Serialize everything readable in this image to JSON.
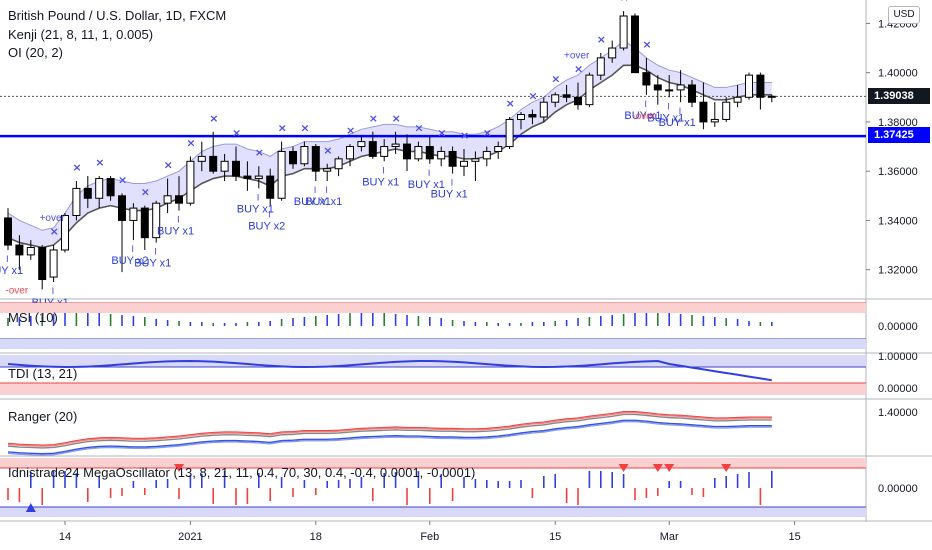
{
  "header": {
    "symbol_line": "British Pound / U.S. Dollar, 1D, FXCM",
    "ind1": "Kenji (21, 8, 11, 1, 0.005)",
    "ind2": "OI (20, 2)"
  },
  "currency": "USD",
  "price_tags": {
    "close": "1.39038",
    "level": "1.37425"
  },
  "colors": {
    "bull_body": "#ffffff",
    "bear_body": "#000000",
    "level_line": "#0000ff",
    "band_fill": "#c9c9ff",
    "marker_blue": "#4b4bf0",
    "marker_red": "#ee4455",
    "ranger_red": "#f04040",
    "ranger_blue": "#3355dd"
  },
  "panels": {
    "msi": "MSI (10)",
    "tdi": "TDI (13, 21)",
    "ranger": "Ranger (20)",
    "osc": "Idnistrade24 MegaOscillator (13, 8, 21, 11, 0.4, 70, 30, 0.4, -0.4, 0.0001, -0.0001)"
  },
  "chart_data": {
    "type": "candlestick",
    "ylim": [
      1.3085,
      1.4295
    ],
    "yticks": [
      "1.42000",
      "1.40000",
      "1.38000",
      "1.36000",
      "1.34000",
      "1.32000"
    ],
    "ytick_values": [
      1.42,
      1.4,
      1.38,
      1.36,
      1.34,
      1.32
    ],
    "xticks": [
      "14",
      "2021",
      "18",
      "Feb",
      "15",
      "Mar",
      "15"
    ],
    "xtick_index": [
      5,
      16,
      27,
      37,
      48,
      58,
      69
    ],
    "sub_ticks": {
      "msi": "0.00000",
      "tdi_top": "1.00000",
      "tdi_bottom": "0.00000",
      "ranger": "1.40000",
      "osc": "0.00000"
    },
    "horizontal_level": 1.37425,
    "last_close": 1.39038,
    "ohlc": [
      [
        1.341,
        1.345,
        1.328,
        1.33
      ],
      [
        1.33,
        1.334,
        1.32,
        1.326
      ],
      [
        1.326,
        1.332,
        1.324,
        1.329
      ],
      [
        1.329,
        1.33,
        1.312,
        1.316
      ],
      [
        1.317,
        1.33,
        1.315,
        1.328
      ],
      [
        1.328,
        1.343,
        1.327,
        1.342
      ],
      [
        1.342,
        1.356,
        1.34,
        1.353
      ],
      [
        1.353,
        1.358,
        1.345,
        1.349
      ],
      [
        1.349,
        1.358,
        1.345,
        1.357
      ],
      [
        1.357,
        1.358,
        1.348,
        1.35
      ],
      [
        1.35,
        1.351,
        1.319,
        1.34
      ],
      [
        1.34,
        1.347,
        1.332,
        1.345
      ],
      [
        1.345,
        1.346,
        1.328,
        1.333
      ],
      [
        1.333,
        1.348,
        1.331,
        1.347
      ],
      [
        1.347,
        1.357,
        1.343,
        1.35
      ],
      [
        1.35,
        1.358,
        1.344,
        1.347
      ],
      [
        1.347,
        1.366,
        1.346,
        1.364
      ],
      [
        1.364,
        1.372,
        1.36,
        1.366
      ],
      [
        1.366,
        1.376,
        1.359,
        1.36
      ],
      [
        1.36,
        1.367,
        1.356,
        1.364
      ],
      [
        1.364,
        1.37,
        1.356,
        1.358
      ],
      [
        1.358,
        1.364,
        1.352,
        1.357
      ],
      [
        1.357,
        1.362,
        1.353,
        1.358
      ],
      [
        1.358,
        1.361,
        1.346,
        1.349
      ],
      [
        1.349,
        1.372,
        1.348,
        1.368
      ],
      [
        1.368,
        1.37,
        1.361,
        1.363
      ],
      [
        1.363,
        1.372,
        1.362,
        1.37
      ],
      [
        1.37,
        1.371,
        1.356,
        1.36
      ],
      [
        1.36,
        1.363,
        1.356,
        1.361
      ],
      [
        1.361,
        1.366,
        1.358,
        1.365
      ],
      [
        1.365,
        1.371,
        1.362,
        1.37
      ],
      [
        1.37,
        1.374,
        1.368,
        1.372
      ],
      [
        1.372,
        1.376,
        1.365,
        1.366
      ],
      [
        1.366,
        1.373,
        1.364,
        1.37
      ],
      [
        1.37,
        1.376,
        1.367,
        1.371
      ],
      [
        1.371,
        1.375,
        1.36,
        1.365
      ],
      [
        1.365,
        1.372,
        1.364,
        1.37
      ],
      [
        1.37,
        1.374,
        1.363,
        1.365
      ],
      [
        1.365,
        1.37,
        1.362,
        1.368
      ],
      [
        1.368,
        1.37,
        1.359,
        1.362
      ],
      [
        1.362,
        1.369,
        1.358,
        1.364
      ],
      [
        1.364,
        1.368,
        1.356,
        1.365
      ],
      [
        1.365,
        1.37,
        1.362,
        1.368
      ],
      [
        1.368,
        1.372,
        1.365,
        1.37
      ],
      [
        1.37,
        1.382,
        1.369,
        1.381
      ],
      [
        1.381,
        1.384,
        1.377,
        1.383
      ],
      [
        1.383,
        1.385,
        1.379,
        1.382
      ],
      [
        1.382,
        1.39,
        1.38,
        1.388
      ],
      [
        1.388,
        1.392,
        1.386,
        1.391
      ],
      [
        1.391,
        1.395,
        1.388,
        1.39
      ],
      [
        1.39,
        1.396,
        1.385,
        1.387
      ],
      [
        1.387,
        1.4,
        1.386,
        1.399
      ],
      [
        1.399,
        1.408,
        1.397,
        1.406
      ],
      [
        1.406,
        1.413,
        1.404,
        1.41
      ],
      [
        1.41,
        1.425,
        1.409,
        1.423
      ],
      [
        1.423,
        1.424,
        1.4,
        1.4
      ],
      [
        1.4,
        1.406,
        1.391,
        1.395
      ],
      [
        1.395,
        1.399,
        1.387,
        1.393
      ],
      [
        1.393,
        1.399,
        1.39,
        1.393
      ],
      [
        1.393,
        1.401,
        1.388,
        1.395
      ],
      [
        1.395,
        1.397,
        1.386,
        1.388
      ],
      [
        1.388,
        1.396,
        1.377,
        1.38
      ],
      [
        1.38,
        1.388,
        1.378,
        1.381
      ],
      [
        1.381,
        1.39,
        1.38,
        1.388
      ],
      [
        1.388,
        1.395,
        1.386,
        1.39
      ],
      [
        1.39,
        1.4,
        1.389,
        1.399
      ],
      [
        1.399,
        1.4,
        1.385,
        1.39
      ],
      [
        1.39,
        1.391,
        1.388,
        1.3904
      ]
    ],
    "ma": [
      1.333,
      1.331,
      1.33,
      1.329,
      1.33,
      1.334,
      1.339,
      1.343,
      1.345,
      1.346,
      1.345,
      1.344,
      1.344,
      1.345,
      1.347,
      1.349,
      1.352,
      1.355,
      1.357,
      1.358,
      1.358,
      1.357,
      1.356,
      1.354,
      1.358,
      1.359,
      1.361,
      1.361,
      1.361,
      1.362,
      1.364,
      1.366,
      1.367,
      1.368,
      1.369,
      1.368,
      1.368,
      1.367,
      1.366,
      1.366,
      1.365,
      1.365,
      1.366,
      1.368,
      1.371,
      1.375,
      1.378,
      1.38,
      1.384,
      1.387,
      1.389,
      1.393,
      1.396,
      1.399,
      1.403,
      1.403,
      1.401,
      1.398,
      1.396,
      1.395,
      1.393,
      1.391,
      1.389,
      1.389,
      1.39,
      1.391,
      1.391,
      1.391
    ],
    "band_upper": [
      1.343,
      1.34,
      1.338,
      1.336,
      1.337,
      1.343,
      1.35,
      1.354,
      1.356,
      1.357,
      1.356,
      1.355,
      1.355,
      1.356,
      1.358,
      1.36,
      1.364,
      1.368,
      1.37,
      1.371,
      1.371,
      1.369,
      1.368,
      1.366,
      1.369,
      1.37,
      1.372,
      1.372,
      1.372,
      1.373,
      1.375,
      1.377,
      1.378,
      1.379,
      1.379,
      1.378,
      1.378,
      1.377,
      1.376,
      1.376,
      1.375,
      1.375,
      1.376,
      1.378,
      1.381,
      1.385,
      1.388,
      1.39,
      1.394,
      1.397,
      1.399,
      1.403,
      1.406,
      1.409,
      1.413,
      1.41,
      1.406,
      1.403,
      1.401,
      1.4,
      1.398,
      1.396,
      1.394,
      1.394,
      1.395,
      1.396,
      1.396,
      1.396
    ],
    "buy_labels": [
      {
        "i": 0,
        "text": "BUY x1"
      },
      {
        "i": 4,
        "text": "BUY x1"
      },
      {
        "i": 11,
        "text": "BUY x2"
      },
      {
        "i": 13,
        "text": "BUY x1"
      },
      {
        "i": 15,
        "text": "BUY x1"
      },
      {
        "i": 22,
        "text": "BUY x1"
      },
      {
        "i": 23,
        "text": "BUY x2"
      },
      {
        "i": 27,
        "text": "BUY x1"
      },
      {
        "i": 28,
        "text": "BUY x1"
      },
      {
        "i": 33,
        "text": "BUY x1"
      },
      {
        "i": 37,
        "text": "BUY x1"
      },
      {
        "i": 39,
        "text": "BUY x1"
      },
      {
        "i": 56,
        "text": "BUY x1"
      },
      {
        "i": 58,
        "text": "BUY x1"
      },
      {
        "i": 59,
        "text": "BUY x1"
      }
    ],
    "over_labels": [
      {
        "i": 1,
        "text": "-over",
        "color": "red"
      },
      {
        "i": 4,
        "text": "+over",
        "color": "blue"
      },
      {
        "i": 50,
        "text": "+over",
        "color": "blue"
      },
      {
        "i": 56,
        "text": "-over",
        "color": "red"
      }
    ]
  }
}
